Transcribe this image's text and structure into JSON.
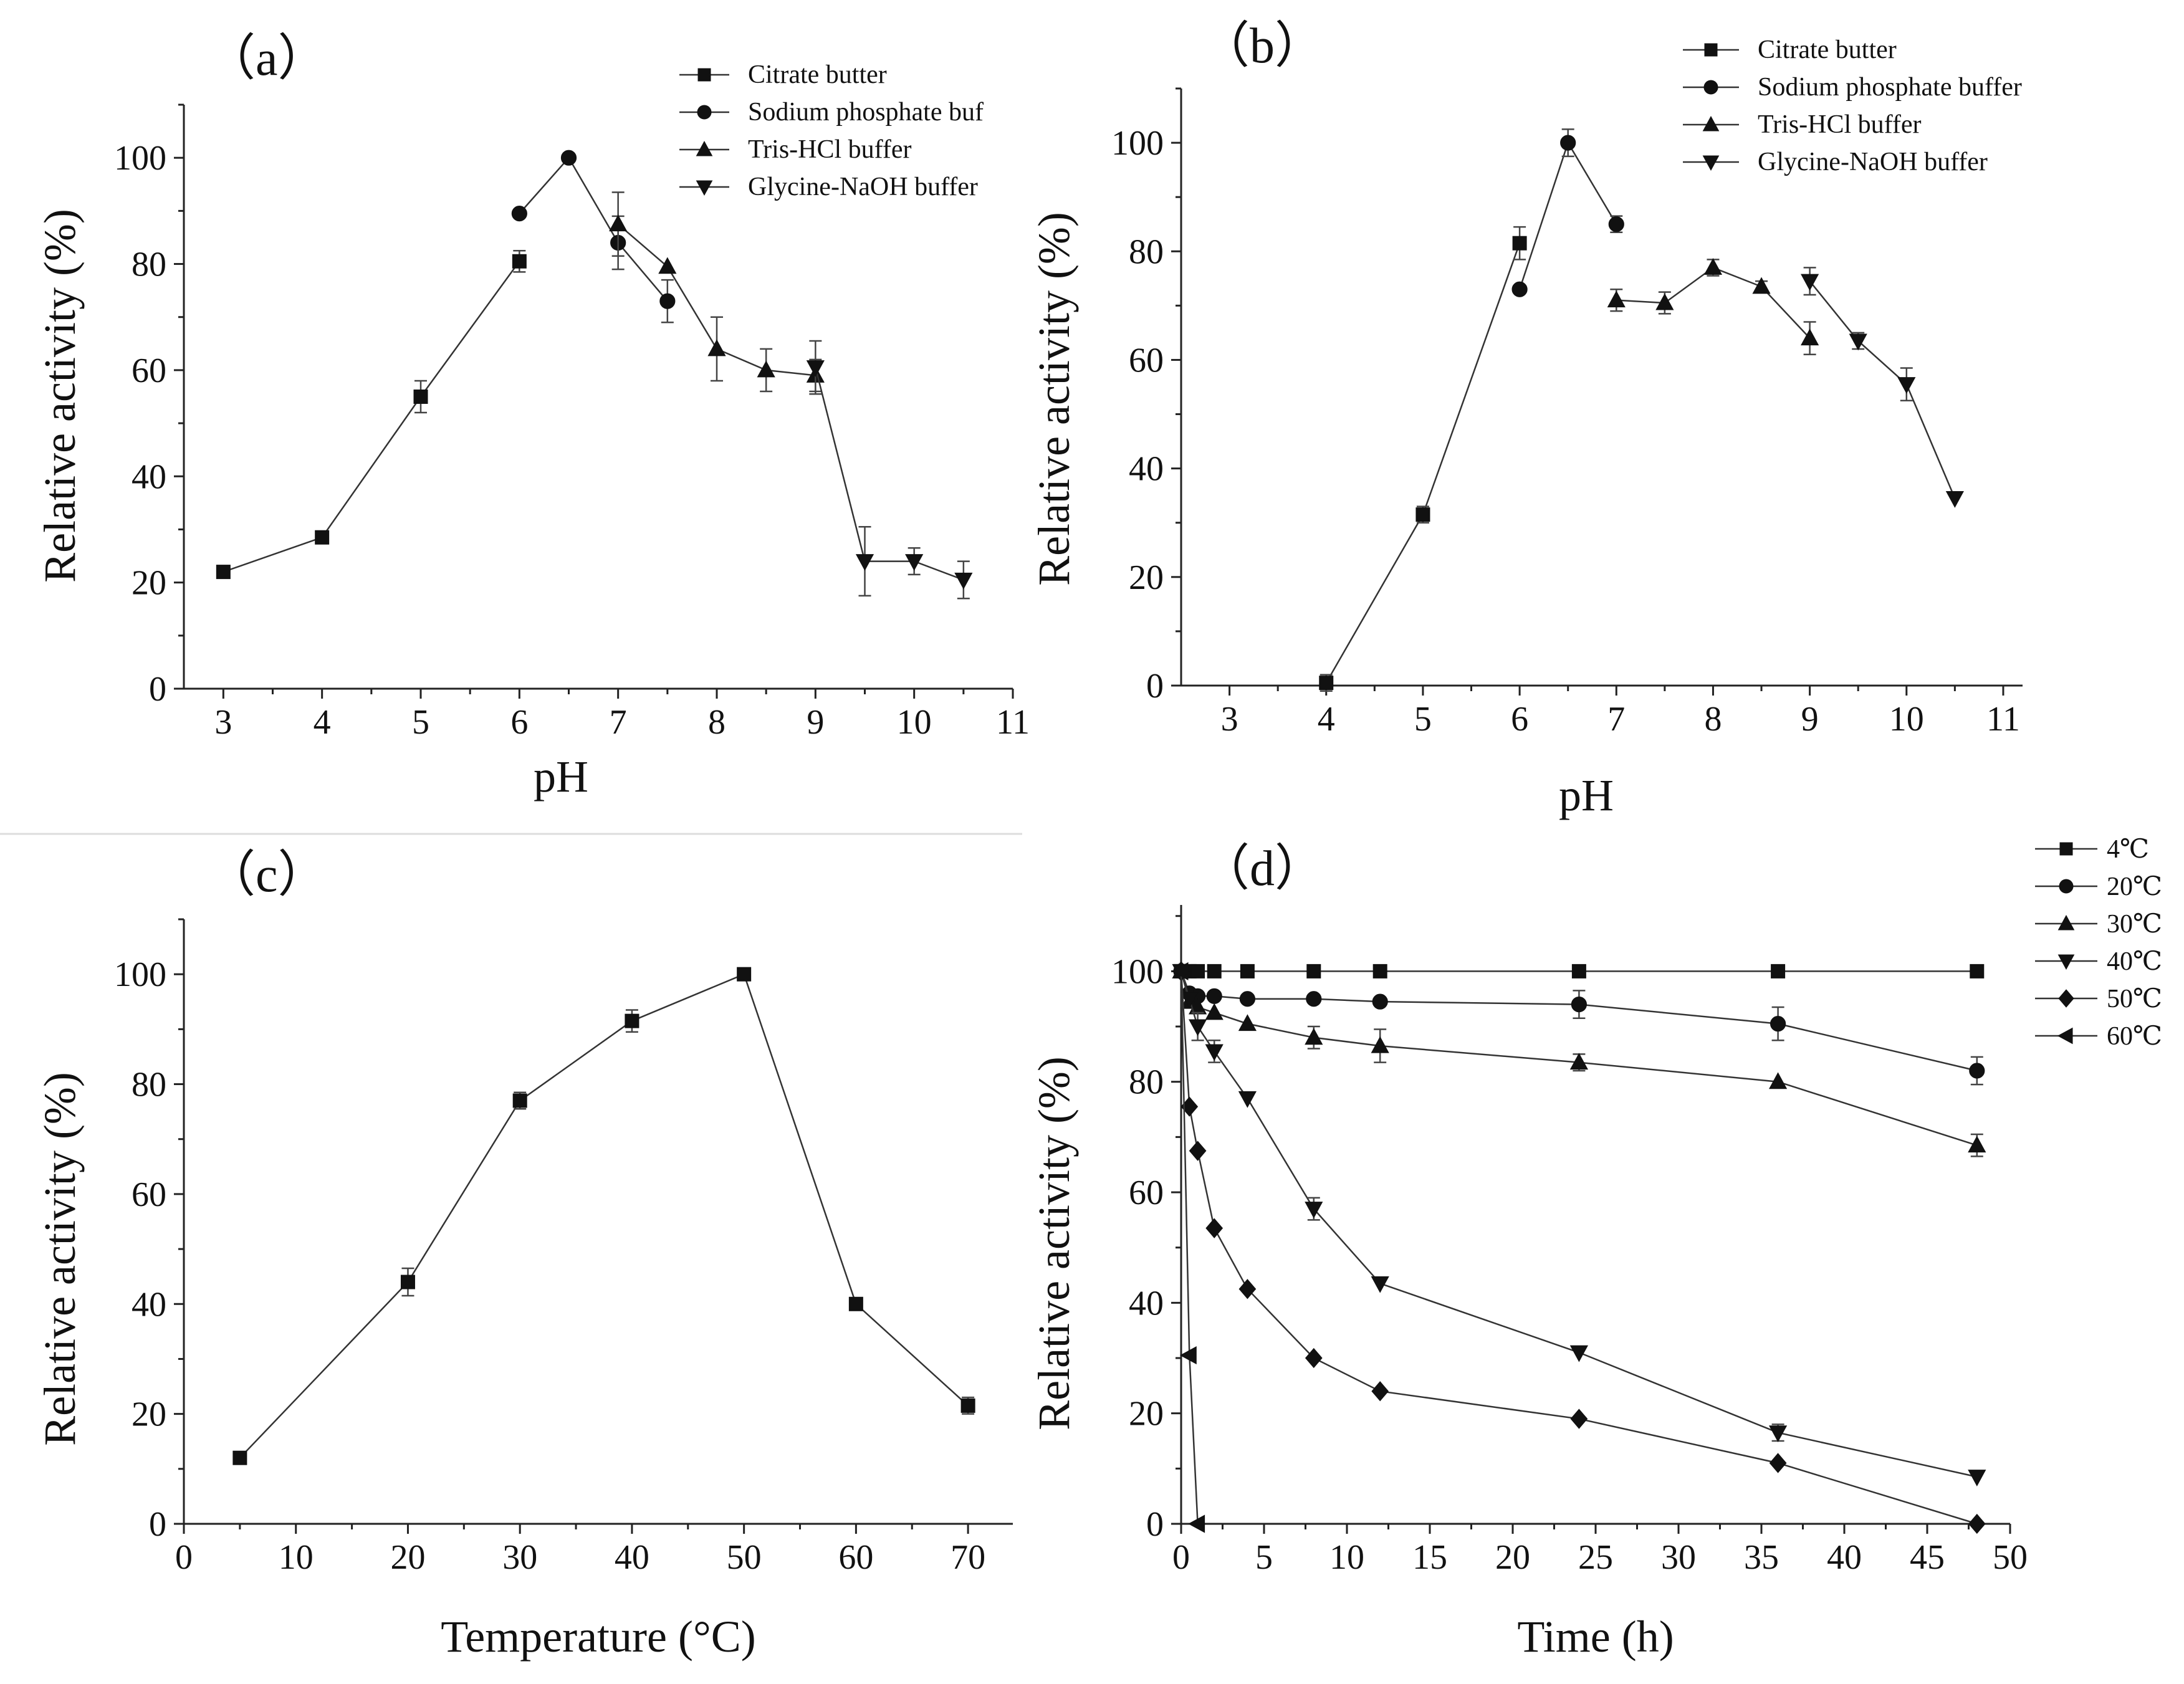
{
  "chart_data": [
    {
      "id": "a",
      "type": "line",
      "panel_label": "（a）",
      "xlabel": "pH",
      "ylabel": "Relative activity (%)",
      "xlim": [
        2.6,
        11
      ],
      "ylim": [
        0,
        110
      ],
      "xticks": [
        "3",
        "4",
        "5",
        "6",
        "7",
        "8",
        "9",
        "10",
        "11"
      ],
      "yticks": [
        "0",
        "20",
        "40",
        "60",
        "80",
        "100"
      ],
      "legend_position": "top-right",
      "series": [
        {
          "name": "Citrate butter",
          "marker": "square",
          "x": [
            3,
            4,
            5,
            6
          ],
          "y": [
            22,
            28.5,
            55,
            80.5
          ],
          "err": [
            0,
            0,
            3,
            2
          ]
        },
        {
          "name": "Sodium phosphate buf",
          "marker": "circle",
          "x": [
            6,
            6.5,
            7,
            7.5
          ],
          "y": [
            89.5,
            100,
            84,
            73
          ],
          "err": [
            0,
            0,
            5,
            4
          ]
        },
        {
          "name": "Tris-HCl buffer",
          "marker": "triangle-up",
          "x": [
            7,
            7.5,
            8,
            8.5,
            9
          ],
          "y": [
            87.5,
            79.5,
            64,
            60,
            59
          ],
          "err": [
            6,
            0,
            6,
            4,
            3
          ]
        },
        {
          "name": "Glycine-NaOH buffer",
          "marker": "triangle-down",
          "x": [
            9,
            9.5,
            10,
            10.5
          ],
          "y": [
            60.5,
            24,
            24,
            20.5
          ],
          "err": [
            5,
            6.5,
            2.5,
            3.5
          ]
        }
      ]
    },
    {
      "id": "b",
      "type": "line",
      "panel_label": "（b）",
      "xlabel": "pH",
      "ylabel": "Relative activity (%)",
      "xlim": [
        2.5,
        11.2
      ],
      "ylim": [
        0,
        110
      ],
      "xticks": [
        "3",
        "4",
        "5",
        "6",
        "7",
        "8",
        "9",
        "10",
        "11"
      ],
      "yticks": [
        "0",
        "20",
        "40",
        "60",
        "80",
        "100"
      ],
      "legend_position": "top-right",
      "series": [
        {
          "name": "Citrate butter",
          "marker": "square",
          "x": [
            4,
            5,
            6
          ],
          "y": [
            0.5,
            31.5,
            81.5
          ],
          "err": [
            1.5,
            1.5,
            3
          ]
        },
        {
          "name": "Sodium phosphate buffer",
          "marker": "circle",
          "x": [
            6,
            6.5,
            7
          ],
          "y": [
            73,
            100,
            85
          ],
          "err": [
            0,
            2.5,
            1.5
          ]
        },
        {
          "name": "Tris-HCl buffer",
          "marker": "triangle-up",
          "x": [
            7,
            7.5,
            8,
            8.5,
            9
          ],
          "y": [
            71,
            70.5,
            77,
            73.5,
            64
          ],
          "err": [
            2,
            2,
            1.5,
            1,
            3
          ]
        },
        {
          "name": "Glycine-NaOH buffer",
          "marker": "triangle-down",
          "x": [
            9,
            9.5,
            10,
            10.5
          ],
          "y": [
            74.5,
            63.5,
            55.5,
            34.5
          ],
          "err": [
            2.5,
            1.5,
            3,
            0
          ]
        }
      ]
    },
    {
      "id": "c",
      "type": "line",
      "panel_label": "（c）",
      "xlabel": "Temperature (°C)",
      "ylabel": "Relative activity (%)",
      "xlim": [
        0,
        74
      ],
      "ylim": [
        0,
        110
      ],
      "xticks": [
        "0",
        "10",
        "20",
        "30",
        "40",
        "50",
        "60",
        "70"
      ],
      "yticks": [
        "0",
        "20",
        "40",
        "60",
        "80",
        "100"
      ],
      "series": [
        {
          "name": "Temperature",
          "marker": "square",
          "x": [
            5,
            20,
            30,
            40,
            50,
            60,
            70
          ],
          "y": [
            12,
            44,
            77,
            91.5,
            100,
            40,
            21.5
          ],
          "err": [
            0,
            2.5,
            1.5,
            2,
            0,
            0,
            1.5
          ]
        }
      ]
    },
    {
      "id": "d",
      "type": "line",
      "panel_label": "（d）",
      "xlabel": "Time (h)",
      "ylabel": "Relative activity (%)",
      "xlim": [
        0,
        50
      ],
      "ylim": [
        0,
        112
      ],
      "xticks": [
        "0",
        "5",
        "10",
        "15",
        "20",
        "25",
        "30",
        "35",
        "40",
        "45",
        "50"
      ],
      "yticks": [
        "0",
        "20",
        "40",
        "60",
        "80",
        "100"
      ],
      "legend_position": "outside-right",
      "series": [
        {
          "name": "4℃",
          "marker": "square",
          "x": [
            0,
            0.5,
            1,
            2,
            4,
            8,
            12,
            24,
            36,
            48
          ],
          "y": [
            100,
            100,
            100,
            100,
            100,
            100,
            100,
            100,
            100,
            100
          ],
          "err": [
            0,
            0,
            0,
            0,
            0,
            0,
            0,
            0,
            0,
            0
          ]
        },
        {
          "name": "20℃",
          "marker": "circle",
          "x": [
            0,
            0.5,
            1,
            2,
            4,
            8,
            12,
            24,
            36,
            48
          ],
          "y": [
            100,
            96,
            95.5,
            95.5,
            95,
            95,
            94.5,
            94,
            90.5,
            82
          ],
          "err": [
            0,
            0,
            0,
            0,
            0,
            0,
            0,
            2.5,
            3,
            2.5
          ]
        },
        {
          "name": "30℃",
          "marker": "triangle-up",
          "x": [
            0,
            0.5,
            1,
            2,
            4,
            8,
            12,
            24,
            36,
            48
          ],
          "y": [
            100,
            94.5,
            93.5,
            92.5,
            90.5,
            88,
            86.5,
            83.5,
            80,
            68.5
          ],
          "err": [
            0,
            0,
            0,
            0,
            0,
            2,
            3,
            1.5,
            0,
            2
          ]
        },
        {
          "name": "40℃",
          "marker": "triangle-down",
          "x": [
            0,
            0.5,
            1,
            2,
            4,
            8,
            12,
            24,
            36,
            48
          ],
          "y": [
            100,
            95,
            90,
            85.5,
            77,
            57,
            43.5,
            31,
            16.5,
            8.5
          ],
          "err": [
            0,
            0,
            2.5,
            2,
            0,
            2,
            0,
            0,
            1.5,
            0
          ]
        },
        {
          "name": "50℃",
          "marker": "diamond",
          "x": [
            0,
            0.5,
            1,
            2,
            4,
            8,
            12,
            24,
            36,
            48
          ],
          "y": [
            100,
            75.5,
            67.5,
            53.5,
            42.5,
            30,
            24,
            19,
            11,
            0
          ],
          "err": [
            0,
            0,
            0,
            0,
            0,
            0,
            0,
            0,
            0,
            0
          ]
        },
        {
          "name": "60℃",
          "marker": "triangle-left",
          "x": [
            0,
            0.5,
            1
          ],
          "y": [
            100,
            30.5,
            0
          ],
          "err": [
            0,
            0,
            0
          ]
        }
      ]
    }
  ]
}
